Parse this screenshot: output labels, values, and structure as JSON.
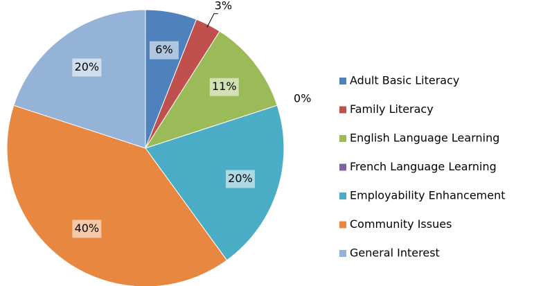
{
  "chart_data": {
    "type": "pie",
    "categories": [
      "Adult Basic Literacy",
      "Family Literacy",
      "English Language Learning",
      "French Language Learning",
      "Employability Enhancement",
      "Community Issues",
      "General Interest"
    ],
    "values": [
      6,
      3,
      11,
      0,
      20,
      40,
      20
    ],
    "value_labels": [
      "6%",
      "3%",
      "11%",
      "0%",
      "20%",
      "40%",
      "20%"
    ],
    "colors": [
      "#4f81bd",
      "#c0504d",
      "#9bbb59",
      "#8064a2",
      "#4bacc6",
      "#e8873f",
      "#95b3d7"
    ],
    "legend": "right"
  }
}
